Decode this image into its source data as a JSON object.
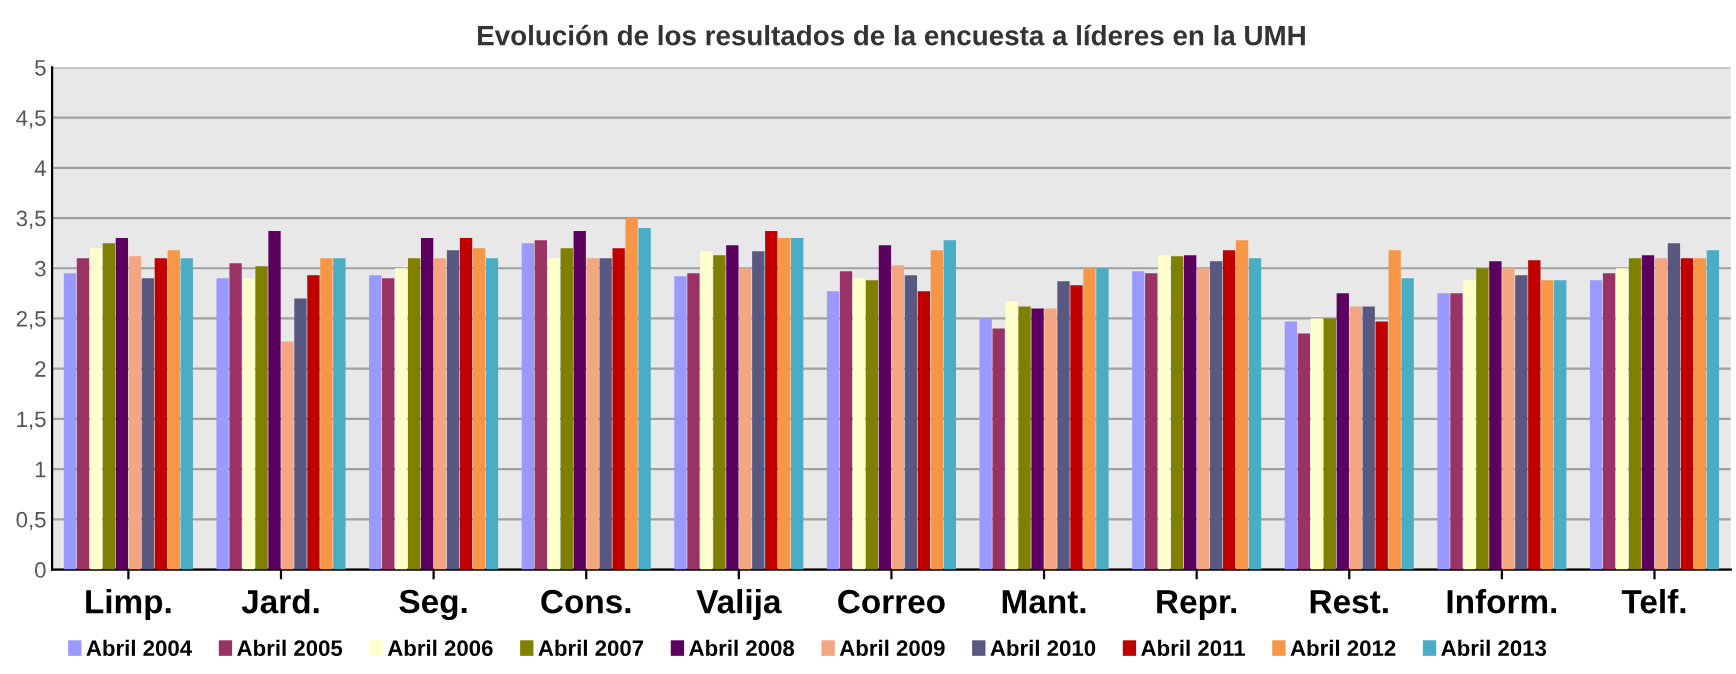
{
  "chart_data": {
    "type": "bar",
    "title": "Evolución de los resultados de la encuesta a líderes en la UMH",
    "categories": [
      "Limp.",
      "Jard.",
      "Seg.",
      "Cons.",
      "Valija",
      "Correo",
      "Mant.",
      "Repr.",
      "Rest.",
      "Inform.",
      "Telf."
    ],
    "series": [
      {
        "name": "Abril 2004",
        "color": "#9999ff",
        "values": [
          2.95,
          2.9,
          2.93,
          3.25,
          2.92,
          2.77,
          2.5,
          2.97,
          2.47,
          2.75,
          2.88
        ]
      },
      {
        "name": "Abril 2005",
        "color": "#993366",
        "values": [
          3.1,
          3.05,
          2.9,
          3.28,
          2.95,
          2.97,
          2.4,
          2.95,
          2.35,
          2.75,
          2.95
        ]
      },
      {
        "name": "Abril 2006",
        "color": "#ffffcc",
        "values": [
          3.2,
          2.9,
          3.0,
          3.1,
          3.17,
          2.9,
          2.67,
          3.13,
          2.5,
          2.88,
          3.0
        ]
      },
      {
        "name": "Abril 2007",
        "color": "#808000",
        "values": [
          3.25,
          3.02,
          3.1,
          3.2,
          3.13,
          2.88,
          2.62,
          3.12,
          2.5,
          3.0,
          3.1
        ]
      },
      {
        "name": "Abril 2008",
        "color": "#5c0060",
        "values": [
          3.3,
          3.37,
          3.3,
          3.37,
          3.23,
          3.23,
          2.6,
          3.13,
          2.75,
          3.07,
          3.13
        ]
      },
      {
        "name": "Abril 2009",
        "color": "#f4a582",
        "values": [
          3.12,
          2.27,
          3.1,
          3.1,
          3.0,
          3.03,
          2.6,
          3.0,
          2.62,
          3.0,
          3.1
        ]
      },
      {
        "name": "Abril 2010",
        "color": "#585880",
        "values": [
          2.9,
          2.7,
          3.18,
          3.1,
          3.17,
          2.93,
          2.87,
          3.07,
          2.62,
          2.93,
          3.25
        ]
      },
      {
        "name": "Abril 2011",
        "color": "#c00000",
        "values": [
          3.1,
          2.93,
          3.3,
          3.2,
          3.37,
          2.77,
          2.83,
          3.18,
          2.47,
          3.08,
          3.1
        ]
      },
      {
        "name": "Abril 2012",
        "color": "#f79646",
        "values": [
          3.18,
          3.1,
          3.2,
          3.5,
          3.3,
          3.18,
          3.0,
          3.28,
          3.18,
          2.88,
          3.1
        ]
      },
      {
        "name": "Abril 2013",
        "color": "#4bacc6",
        "values": [
          3.1,
          3.1,
          3.1,
          3.4,
          3.3,
          3.28,
          3.0,
          3.1,
          2.9,
          2.88,
          3.18
        ]
      }
    ],
    "ylim": [
      0,
      5
    ],
    "yticks": [
      0,
      {
        "value": 0.5,
        "label": "0,5"
      },
      1,
      {
        "value": 1.5,
        "label": "1,5"
      },
      2,
      {
        "value": 2.5,
        "label": "2,5"
      },
      3,
      {
        "value": 3.5,
        "label": "3,5"
      },
      4,
      {
        "value": 4.5,
        "label": "4,5"
      },
      5
    ],
    "grid": "y",
    "legend": "bottom"
  }
}
